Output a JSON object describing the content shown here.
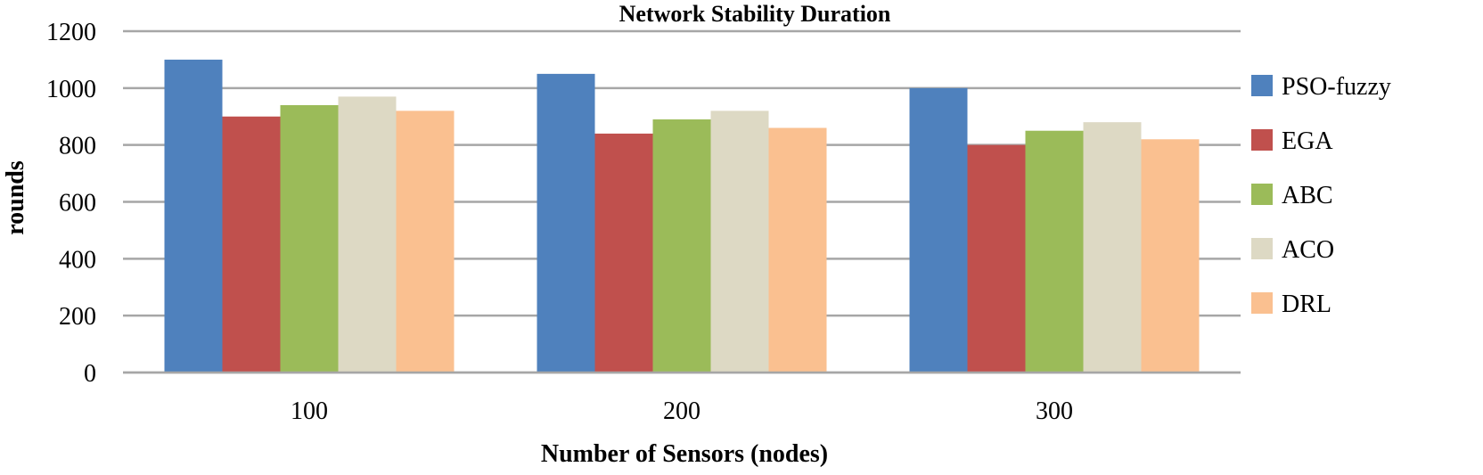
{
  "chart_data": {
    "type": "bar",
    "title": "Network Stability Duration",
    "xlabel": "Number of Sensors (nodes)",
    "ylabel": "rounds",
    "categories": [
      "100",
      "200",
      "300"
    ],
    "ylim": [
      0,
      1200
    ],
    "yticks": [
      0,
      200,
      400,
      600,
      800,
      1000,
      1200
    ],
    "grid": true,
    "legend_position": "right",
    "series": [
      {
        "name": "PSO-fuzzy",
        "color": "#4F81BD",
        "values": [
          1100,
          1050,
          1000
        ]
      },
      {
        "name": "EGA",
        "color": "#C0504D",
        "values": [
          900,
          840,
          800
        ]
      },
      {
        "name": "ABC",
        "color": "#9BBB59",
        "values": [
          940,
          890,
          850
        ]
      },
      {
        "name": "ACO",
        "color": "#DDD9C4",
        "values": [
          970,
          920,
          880
        ]
      },
      {
        "name": "DRL",
        "color": "#FAC090",
        "values": [
          920,
          860,
          820
        ]
      }
    ]
  }
}
